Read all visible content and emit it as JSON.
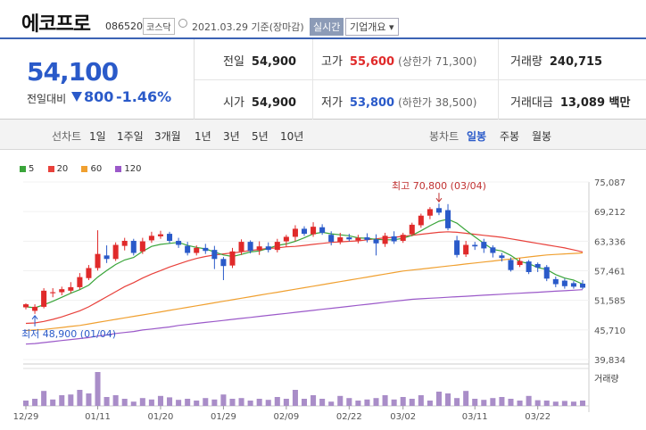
{
  "header": {
    "name": "에코프로",
    "code": "086520",
    "market": "코스닥",
    "date": "2021.03.29 기준(장마감)",
    "realtime": "실시간",
    "overview": "기업개요 ▾"
  },
  "summary": {
    "price": "54,100",
    "change_label": "전일대비",
    "change": "800",
    "change_pct": "-1.46%",
    "prev_label": "전일",
    "prev": "54,900",
    "open_label": "시가",
    "open": "54,900",
    "high_label": "고가",
    "high": "55,600",
    "upper_limit": "(상한가 71,300)",
    "low_label": "저가",
    "low": "53,800",
    "lower_limit": "(하한가 38,500)",
    "volume_label": "거래량",
    "volume": "240,715",
    "amount_label": "거래대금",
    "amount": "13,089 백만"
  },
  "tabs": {
    "line_chart": "선차트",
    "periods": [
      "1일",
      "1주일",
      "3개월",
      "1년",
      "3년",
      "5년",
      "10년"
    ],
    "candle_chart": "봉차트",
    "candle_periods": [
      "일봉",
      "주봉",
      "월봉"
    ],
    "active_candle": "일봉"
  },
  "legend": [
    {
      "label": "5",
      "color": "#3aa53a"
    },
    {
      "label": "20",
      "color": "#e8413b"
    },
    {
      "label": "60",
      "color": "#f0a030"
    },
    {
      "label": "120",
      "color": "#9b59c9"
    }
  ],
  "colors": {
    "up": "#e02a2a",
    "down": "#2a5ac9",
    "volume": "#a98dc8",
    "ma5": "#3aa53a",
    "ma20": "#e8413b",
    "ma60": "#f0a030",
    "ma120": "#9b59c9"
  },
  "chart_data": {
    "type": "candlestick",
    "y_ticks": [
      "75,087",
      "69,212",
      "63,336",
      "57,461",
      "51,585",
      "45,710",
      "39,834"
    ],
    "ylim": [
      39834,
      75087
    ],
    "x_labels": [
      "12/29",
      "01/11",
      "01/20",
      "01/29",
      "02/09",
      "02/22",
      "03/02",
      "03/11",
      "03/22"
    ],
    "max_annotation": "최고 70,800 (03/04)",
    "min_annotation": "최저 48,900 (01/04)",
    "volume_label": "거래량",
    "candles": [
      {
        "o": 50200,
        "c": 50800,
        "h": 51000,
        "l": 49800
      },
      {
        "o": 49500,
        "c": 50300,
        "h": 50800,
        "l": 48900
      },
      {
        "o": 50300,
        "c": 53500,
        "h": 54000,
        "l": 50000
      },
      {
        "o": 53000,
        "c": 53200,
        "h": 54000,
        "l": 52200
      },
      {
        "o": 53200,
        "c": 53800,
        "h": 54300,
        "l": 52600
      },
      {
        "o": 53500,
        "c": 54200,
        "h": 55200,
        "l": 53000
      },
      {
        "o": 54200,
        "c": 56200,
        "h": 57000,
        "l": 53700
      },
      {
        "o": 56000,
        "c": 58000,
        "h": 58600,
        "l": 55600
      },
      {
        "o": 58000,
        "c": 60800,
        "h": 65500,
        "l": 57500
      },
      {
        "o": 60500,
        "c": 59800,
        "h": 62500,
        "l": 59000
      },
      {
        "o": 59800,
        "c": 62600,
        "h": 63100,
        "l": 59400
      },
      {
        "o": 62400,
        "c": 63400,
        "h": 64000,
        "l": 61500
      },
      {
        "o": 63400,
        "c": 61000,
        "h": 63800,
        "l": 60500
      },
      {
        "o": 61300,
        "c": 63300,
        "h": 64000,
        "l": 60800
      },
      {
        "o": 63500,
        "c": 64400,
        "h": 65200,
        "l": 63000
      },
      {
        "o": 64300,
        "c": 64700,
        "h": 65400,
        "l": 63800
      },
      {
        "o": 64800,
        "c": 63400,
        "h": 65200,
        "l": 62900
      },
      {
        "o": 63400,
        "c": 62600,
        "h": 64000,
        "l": 62000
      },
      {
        "o": 62400,
        "c": 61000,
        "h": 63200,
        "l": 60500
      },
      {
        "o": 61000,
        "c": 62000,
        "h": 62500,
        "l": 60500
      },
      {
        "o": 62000,
        "c": 61400,
        "h": 62800,
        "l": 60800
      },
      {
        "o": 61600,
        "c": 59800,
        "h": 62400,
        "l": 57800
      },
      {
        "o": 59800,
        "c": 58400,
        "h": 60200,
        "l": 55600
      },
      {
        "o": 58500,
        "c": 61300,
        "h": 62000,
        "l": 58000
      },
      {
        "o": 61300,
        "c": 63200,
        "h": 63700,
        "l": 60600
      },
      {
        "o": 63200,
        "c": 61400,
        "h": 63500,
        "l": 60900
      },
      {
        "o": 61500,
        "c": 62300,
        "h": 63300,
        "l": 60600
      },
      {
        "o": 62300,
        "c": 61600,
        "h": 63100,
        "l": 61100
      },
      {
        "o": 61600,
        "c": 63200,
        "h": 63800,
        "l": 61100
      },
      {
        "o": 63300,
        "c": 64200,
        "h": 64600,
        "l": 62200
      },
      {
        "o": 64200,
        "c": 65800,
        "h": 66500,
        "l": 63300
      },
      {
        "o": 65800,
        "c": 64800,
        "h": 66300,
        "l": 64400
      },
      {
        "o": 64700,
        "c": 66200,
        "h": 67100,
        "l": 64200
      },
      {
        "o": 66100,
        "c": 65000,
        "h": 66700,
        "l": 64600
      },
      {
        "o": 64600,
        "c": 63200,
        "h": 65300,
        "l": 62500
      },
      {
        "o": 63200,
        "c": 64100,
        "h": 65000,
        "l": 62700
      },
      {
        "o": 64100,
        "c": 63700,
        "h": 64800,
        "l": 63300
      },
      {
        "o": 63500,
        "c": 64000,
        "h": 64600,
        "l": 62900
      },
      {
        "o": 64100,
        "c": 63600,
        "h": 64900,
        "l": 63100
      },
      {
        "o": 63700,
        "c": 62900,
        "h": 64700,
        "l": 60500
      },
      {
        "o": 62800,
        "c": 64400,
        "h": 65000,
        "l": 62200
      },
      {
        "o": 64300,
        "c": 63300,
        "h": 65300,
        "l": 62800
      },
      {
        "o": 63400,
        "c": 64600,
        "h": 65000,
        "l": 63000
      },
      {
        "o": 64700,
        "c": 66600,
        "h": 67000,
        "l": 64300
      },
      {
        "o": 66500,
        "c": 68400,
        "h": 68800,
        "l": 66000
      },
      {
        "o": 68400,
        "c": 69700,
        "h": 70100,
        "l": 67700
      },
      {
        "o": 69900,
        "c": 69000,
        "h": 70800,
        "l": 68500
      },
      {
        "o": 69500,
        "c": 65900,
        "h": 70700,
        "l": 65500
      },
      {
        "o": 63500,
        "c": 60600,
        "h": 64400,
        "l": 60100
      },
      {
        "o": 60700,
        "c": 62600,
        "h": 63400,
        "l": 60200
      },
      {
        "o": 62600,
        "c": 62300,
        "h": 63200,
        "l": 61600
      },
      {
        "o": 63200,
        "c": 61900,
        "h": 63800,
        "l": 61000
      },
      {
        "o": 62100,
        "c": 61000,
        "h": 62500,
        "l": 60100
      },
      {
        "o": 60500,
        "c": 60000,
        "h": 61000,
        "l": 59300
      },
      {
        "o": 59600,
        "c": 57600,
        "h": 60100,
        "l": 57300
      },
      {
        "o": 58600,
        "c": 59400,
        "h": 60000,
        "l": 58200
      },
      {
        "o": 59300,
        "c": 57200,
        "h": 59600,
        "l": 56800
      },
      {
        "o": 58800,
        "c": 58100,
        "h": 59100,
        "l": 57200
      },
      {
        "o": 58200,
        "c": 55900,
        "h": 58600,
        "l": 55400
      },
      {
        "o": 55800,
        "c": 54800,
        "h": 56300,
        "l": 54200
      },
      {
        "o": 55500,
        "c": 54400,
        "h": 55900,
        "l": 53900
      },
      {
        "o": 55000,
        "c": 54300,
        "h": 55400,
        "l": 53900
      },
      {
        "o": 54900,
        "c": 54100,
        "h": 55600,
        "l": 53800
      }
    ],
    "volumes": [
      0.15,
      0.2,
      0.42,
      0.18,
      0.3,
      0.32,
      0.45,
      0.35,
      0.95,
      0.25,
      0.3,
      0.2,
      0.12,
      0.22,
      0.18,
      0.28,
      0.24,
      0.17,
      0.2,
      0.15,
      0.22,
      0.18,
      0.32,
      0.2,
      0.22,
      0.15,
      0.2,
      0.17,
      0.25,
      0.2,
      0.45,
      0.2,
      0.3,
      0.2,
      0.12,
      0.28,
      0.22,
      0.15,
      0.18,
      0.22,
      0.3,
      0.18,
      0.25,
      0.2,
      0.3,
      0.15,
      0.4,
      0.35,
      0.22,
      0.42,
      0.2,
      0.17,
      0.22,
      0.25,
      0.2,
      0.15,
      0.28,
      0.16,
      0.15,
      0.12,
      0.14,
      0.12,
      0.15
    ],
    "ma5": [
      50300,
      50100,
      50700,
      51400,
      52200,
      53000,
      53700,
      54600,
      56200,
      57500,
      58700,
      59600,
      60100,
      61300,
      62300,
      62700,
      62900,
      63100,
      62500,
      62100,
      61800,
      61200,
      60600,
      60300,
      60700,
      61200,
      61400,
      61900,
      62500,
      62800,
      63300,
      64000,
      64800,
      65100,
      64800,
      64600,
      64400,
      64000,
      63900,
      63700,
      63600,
      63600,
      63900,
      64500,
      65400,
      66400,
      67300,
      67700,
      66900,
      65500,
      64200,
      62900,
      61700,
      61400,
      60500,
      59300,
      58900,
      58100,
      57700,
      56700,
      56000,
      55600,
      54800
    ],
    "ma20": [
      47000,
      47100,
      47400,
      47800,
      48300,
      48900,
      49500,
      50300,
      51300,
      52300,
      53300,
      54300,
      55100,
      56000,
      56800,
      57500,
      58200,
      58800,
      59400,
      59900,
      60300,
      60600,
      60800,
      61000,
      61200,
      61500,
      61700,
      61900,
      62000,
      62200,
      62300,
      62500,
      62700,
      62900,
      63100,
      63200,
      63300,
      63400,
      63600,
      63800,
      64000,
      64100,
      64300,
      64500,
      64700,
      64900,
      65100,
      65200,
      65100,
      64900,
      64700,
      64500,
      64300,
      64100,
      63800,
      63500,
      63200,
      62900,
      62600,
      62300,
      62000,
      61600,
      61200
    ],
    "ma60": [
      45600,
      45700,
      45800,
      46000,
      46200,
      46400,
      46600,
      46900,
      47200,
      47500,
      47800,
      48100,
      48400,
      48700,
      49000,
      49300,
      49600,
      49900,
      50200,
      50500,
      50800,
      51100,
      51400,
      51700,
      52000,
      52300,
      52600,
      52900,
      53200,
      53500,
      53800,
      54100,
      54400,
      54700,
      55000,
      55300,
      55600,
      55900,
      56200,
      56500,
      56800,
      57100,
      57400,
      57600,
      57800,
      58000,
      58200,
      58400,
      58600,
      58800,
      59000,
      59200,
      59400,
      59600,
      59800,
      60000,
      60200,
      60400,
      60600,
      60700,
      60800,
      60900,
      61000
    ],
    "ma120": [
      42900,
      43000,
      43200,
      43400,
      43600,
      43800,
      44000,
      44200,
      44500,
      44700,
      45000,
      45200,
      45400,
      45700,
      45900,
      46100,
      46300,
      46600,
      46800,
      47000,
      47200,
      47400,
      47600,
      47800,
      48000,
      48200,
      48400,
      48600,
      48800,
      49000,
      49200,
      49400,
      49600,
      49800,
      50000,
      50200,
      50400,
      50600,
      50800,
      51000,
      51200,
      51400,
      51600,
      51800,
      51900,
      52000,
      52100,
      52200,
      52300,
      52400,
      52500,
      52600,
      52700,
      52800,
      52900,
      53000,
      53100,
      53200,
      53300,
      53400,
      53500,
      53600,
      53700
    ]
  }
}
